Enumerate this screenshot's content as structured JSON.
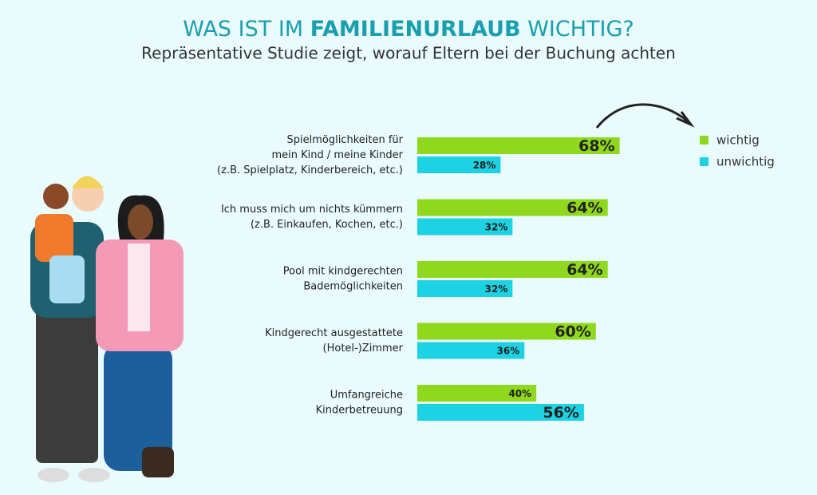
{
  "chart_data": {
    "type": "bar",
    "orientation": "horizontal",
    "title": [
      "WAS IST IM",
      "FAMILIENURLAUB",
      "WICHTIG?"
    ],
    "subtitle": "Repräsentative Studie zeigt, worauf Eltern bei der Buchung achten",
    "categories": [
      [
        "Spielmöglichkeiten für",
        "mein Kind / meine Kinder",
        "(z.B. Spielplatz, Kinderbereich, etc.)"
      ],
      [
        "Ich muss mich um nichts kümmern",
        "(z.B. Einkaufen, Kochen, etc.)"
      ],
      [
        "Pool mit kindgerechten",
        "Bademöglichkeiten"
      ],
      [
        "Kindgerecht ausgestattete",
        "(Hotel-)Zimmer"
      ],
      [
        "Umfangreiche",
        "Kinderbetreuung"
      ]
    ],
    "series": [
      {
        "name": "wichtig",
        "color": "#8fd81e",
        "values": [
          68,
          64,
          64,
          60,
          40
        ],
        "value_labels": [
          "68%",
          "64%",
          "64%",
          "60%",
          "40%"
        ]
      },
      {
        "name": "unwichtig",
        "color": "#1dd2e2",
        "values": [
          28,
          32,
          32,
          36,
          56
        ],
        "value_labels": [
          "28%",
          "32%",
          "32%",
          "36%",
          "56%"
        ]
      }
    ]
  }
}
